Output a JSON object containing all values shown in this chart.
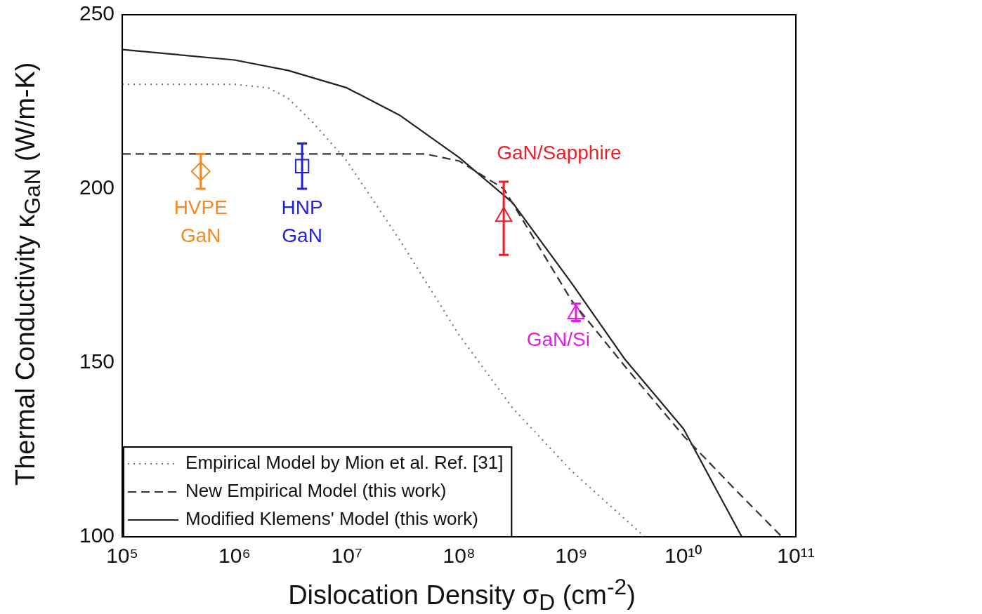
{
  "chart_data": {
    "type": "line",
    "xlabel": "Dislocation Density σ$_{D}$ (cm$^{-2}$)",
    "ylabel": "Thermal Conductivity κ$_{GaN}$ (W/m-K)",
    "log": "x",
    "grid": false,
    "legend": "bottom left",
    "xlim": [
      100000,
      100000000000
    ],
    "xticks": [
      {
        "value": 100000,
        "label": "10⁵"
      },
      {
        "value": 1000000,
        "label": "10⁶"
      },
      {
        "value": 10000000,
        "label": "10⁷"
      },
      {
        "value": 100000000,
        "label": "10⁸"
      },
      {
        "value": 1000000000,
        "label": "10⁹"
      },
      {
        "value": 10000000000,
        "label": "10¹⁰"
      },
      {
        "value": 100000000000,
        "label": "10¹¹"
      }
    ],
    "ylim": [
      100,
      250
    ],
    "yticks": [
      100,
      150,
      200,
      250
    ],
    "series": [
      {
        "name": "Empirical Model by Mion et al. Ref. [31]",
        "line_style": "dotted",
        "marker": "none",
        "color": "#777777",
        "x": [
          100000,
          1000000,
          2000000,
          3000000,
          5000000,
          10000000,
          30000000,
          100000000,
          300000000,
          1000000000,
          4500000000
        ],
        "values": [
          230,
          230,
          229,
          226,
          219,
          208,
          185,
          158,
          137,
          119,
          100
        ]
      },
      {
        "name": "New Empirical Model (this work)",
        "line_style": "dashed",
        "marker": "none",
        "color": "#333333",
        "x": [
          100000,
          50000000,
          100000000,
          250000000,
          1000000000,
          3000000000,
          10000000000,
          30000000000,
          75000000000
        ],
        "values": [
          210,
          210,
          208,
          200,
          168,
          149,
          129,
          113,
          100
        ]
      },
      {
        "name": "Modified Klemens' Model (this work)",
        "line_style": "solid",
        "marker": "none",
        "color": "#222222",
        "x": [
          100000,
          1000000,
          3000000,
          10000000,
          30000000,
          100000000,
          300000000,
          1000000000,
          3000000000,
          10000000000,
          33000000000
        ],
        "values": [
          240,
          237,
          234,
          229,
          221,
          209,
          196,
          173,
          151,
          131,
          100
        ]
      },
      {
        "name": "HVPE GaN",
        "type": "scatter",
        "marker": "diamond",
        "color": "#f08a24",
        "x": [
          500000
        ],
        "values": [
          205
        ],
        "errors": [
          [
            200,
            210
          ]
        ]
      },
      {
        "name": "HNP GaN",
        "type": "scatter",
        "marker": "square",
        "color": "#2020e0",
        "x": [
          4000000
        ],
        "values": [
          206.5
        ],
        "errors": [
          [
            200,
            213
          ]
        ]
      },
      {
        "name": "GaN/Sapphire",
        "type": "scatter",
        "marker": "triangle",
        "color": "#e82028",
        "x": [
          250000000
        ],
        "values": [
          192
        ],
        "errors": [
          [
            181,
            202
          ]
        ]
      },
      {
        "name": "GaN/Si",
        "type": "scatter",
        "marker": "triangle",
        "color": "#e020e0",
        "x": [
          1100000000
        ],
        "values": [
          164
        ],
        "errors": [
          [
            162,
            167
          ]
        ]
      }
    ]
  }
}
